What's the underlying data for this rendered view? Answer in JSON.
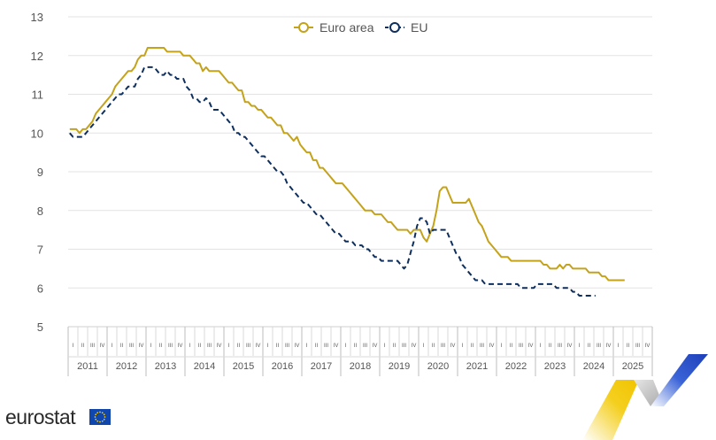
{
  "branding": {
    "logo_text": "eurostat",
    "flag_icon": "eu-flag-icon"
  },
  "chart_data": {
    "type": "line",
    "title": "",
    "xlabel": "",
    "ylabel": "",
    "ylim": [
      5,
      13
    ],
    "yticks": [
      5,
      6,
      7,
      8,
      9,
      10,
      11,
      12,
      13
    ],
    "grid": true,
    "legend_position": "top-center",
    "years": [
      "2011",
      "2012",
      "2013",
      "2014",
      "2015",
      "2016",
      "2017",
      "2018",
      "2019",
      "2020",
      "2021",
      "2022",
      "2023",
      "2024",
      "2025"
    ],
    "quarter_labels": [
      "I",
      "II",
      "III",
      "IV"
    ],
    "x_start": "2011-01",
    "series": [
      {
        "name": "Euro area",
        "color": "#c4a21a",
        "style": "solid",
        "values": [
          10.1,
          10.1,
          10.1,
          10.0,
          10.1,
          10.1,
          10.2,
          10.3,
          10.5,
          10.6,
          10.7,
          10.8,
          10.9,
          11.0,
          11.2,
          11.3,
          11.4,
          11.5,
          11.6,
          11.6,
          11.7,
          11.9,
          12.0,
          12.0,
          12.2,
          12.2,
          12.2,
          12.2,
          12.2,
          12.2,
          12.1,
          12.1,
          12.1,
          12.1,
          12.1,
          12.0,
          12.0,
          12.0,
          11.9,
          11.8,
          11.8,
          11.6,
          11.7,
          11.6,
          11.6,
          11.6,
          11.6,
          11.5,
          11.4,
          11.3,
          11.3,
          11.2,
          11.1,
          11.1,
          10.8,
          10.8,
          10.7,
          10.7,
          10.6,
          10.6,
          10.5,
          10.4,
          10.4,
          10.3,
          10.2,
          10.2,
          10.0,
          10.0,
          9.9,
          9.8,
          9.9,
          9.7,
          9.6,
          9.5,
          9.5,
          9.3,
          9.3,
          9.1,
          9.1,
          9.0,
          8.9,
          8.8,
          8.7,
          8.7,
          8.7,
          8.6,
          8.5,
          8.4,
          8.3,
          8.2,
          8.1,
          8.0,
          8.0,
          8.0,
          7.9,
          7.9,
          7.9,
          7.8,
          7.7,
          7.7,
          7.6,
          7.5,
          7.5,
          7.5,
          7.5,
          7.4,
          7.5,
          7.5,
          7.5,
          7.3,
          7.2,
          7.4,
          7.6,
          8.0,
          8.5,
          8.6,
          8.6,
          8.4,
          8.2,
          8.2,
          8.2,
          8.2,
          8.2,
          8.3,
          8.1,
          7.9,
          7.7,
          7.6,
          7.4,
          7.2,
          7.1,
          7.0,
          6.9,
          6.8,
          6.8,
          6.8,
          6.7,
          6.7,
          6.7,
          6.7,
          6.7,
          6.7,
          6.7,
          6.7,
          6.7,
          6.7,
          6.6,
          6.6,
          6.5,
          6.5,
          6.5,
          6.6,
          6.5,
          6.6,
          6.6,
          6.5,
          6.5,
          6.5,
          6.5,
          6.5,
          6.4,
          6.4,
          6.4,
          6.4,
          6.3,
          6.3,
          6.2,
          6.2,
          6.2,
          6.2,
          6.2,
          6.2
        ]
      },
      {
        "name": "EU",
        "color": "#0e2f5e",
        "style": "dashed",
        "values": [
          10.0,
          9.9,
          9.9,
          9.9,
          9.9,
          10.0,
          10.1,
          10.2,
          10.3,
          10.4,
          10.5,
          10.6,
          10.7,
          10.8,
          10.9,
          11.0,
          11.0,
          11.1,
          11.2,
          11.2,
          11.2,
          11.4,
          11.5,
          11.7,
          11.7,
          11.7,
          11.7,
          11.6,
          11.5,
          11.5,
          11.6,
          11.5,
          11.5,
          11.4,
          11.4,
          11.4,
          11.2,
          11.1,
          10.9,
          10.9,
          10.8,
          10.8,
          10.9,
          10.8,
          10.6,
          10.6,
          10.6,
          10.5,
          10.4,
          10.3,
          10.2,
          10.0,
          10.0,
          9.9,
          9.9,
          9.8,
          9.7,
          9.6,
          9.5,
          9.4,
          9.4,
          9.3,
          9.2,
          9.1,
          9.0,
          9.0,
          8.9,
          8.7,
          8.6,
          8.5,
          8.4,
          8.3,
          8.2,
          8.2,
          8.1,
          8.0,
          7.9,
          7.9,
          7.8,
          7.7,
          7.6,
          7.5,
          7.4,
          7.4,
          7.3,
          7.2,
          7.2,
          7.2,
          7.1,
          7.1,
          7.1,
          7.0,
          7.0,
          6.9,
          6.8,
          6.8,
          6.7,
          6.7,
          6.7,
          6.7,
          6.7,
          6.7,
          6.6,
          6.5,
          6.6,
          6.9,
          7.2,
          7.6,
          7.8,
          7.8,
          7.7,
          7.4,
          7.5,
          7.5,
          7.5,
          7.5,
          7.5,
          7.3,
          7.1,
          6.9,
          6.8,
          6.6,
          6.5,
          6.4,
          6.3,
          6.2,
          6.2,
          6.2,
          6.1,
          6.1,
          6.1,
          6.1,
          6.1,
          6.1,
          6.1,
          6.1,
          6.1,
          6.1,
          6.1,
          6.0,
          6.0,
          6.0,
          6.0,
          6.0,
          6.1,
          6.1,
          6.1,
          6.1,
          6.1,
          6.1,
          6.0,
          6.0,
          6.0,
          6.0,
          6.0,
          5.9,
          5.9,
          5.8,
          5.8,
          5.8,
          5.8,
          5.8,
          5.8
        ]
      }
    ]
  }
}
